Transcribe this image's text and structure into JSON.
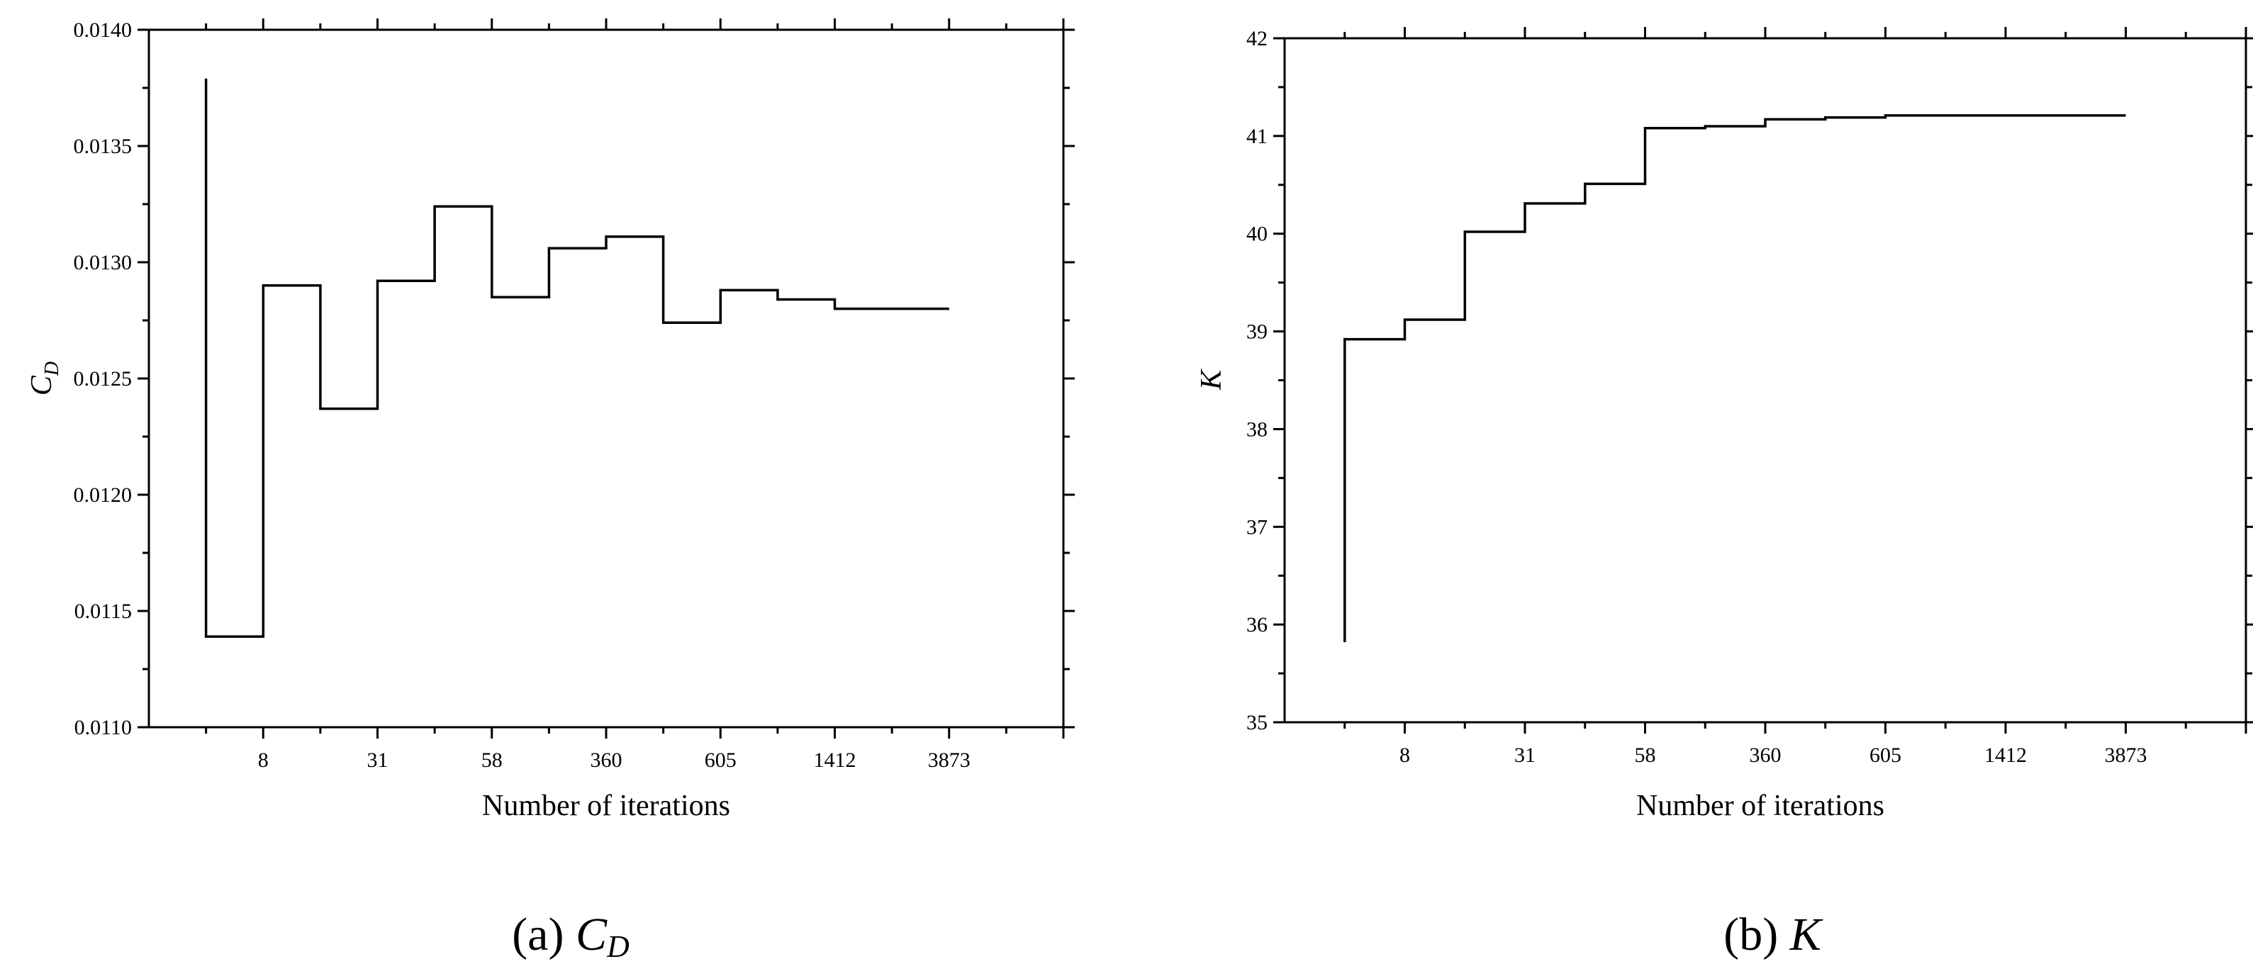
{
  "chart_data": [
    {
      "type": "line",
      "subtype": "step",
      "caption": {
        "prefix": "(a) ",
        "symbol": "C",
        "subscript": "D"
      },
      "ylabel": {
        "symbol": "C",
        "subscript": "D"
      },
      "xlabel": "Number of iterations",
      "ylim": [
        0.011,
        0.014
      ],
      "y_ticks": [
        "0.0110",
        "0.0115",
        "0.0120",
        "0.0125",
        "0.0130",
        "0.0135",
        "0.0140"
      ],
      "x_tick_labels": [
        "8",
        "31",
        "58",
        "360",
        "605",
        "1412",
        "3873"
      ],
      "x_index_range": [
        0,
        16
      ],
      "series": [
        {
          "points": [
            [
              1,
              0.01379
            ],
            [
              1,
              0.01139
            ],
            [
              2,
              0.01139
            ],
            [
              2,
              0.0129
            ],
            [
              3,
              0.0129
            ],
            [
              3,
              0.01237
            ],
            [
              4,
              0.01237
            ],
            [
              4,
              0.01292
            ],
            [
              5,
              0.01292
            ],
            [
              5,
              0.01324
            ],
            [
              6,
              0.01324
            ],
            [
              6,
              0.01285
            ],
            [
              7,
              0.01285
            ],
            [
              7,
              0.01306
            ],
            [
              8,
              0.01306
            ],
            [
              8,
              0.01311
            ],
            [
              9,
              0.01311
            ],
            [
              9,
              0.01274
            ],
            [
              10,
              0.01274
            ],
            [
              10,
              0.01288
            ],
            [
              11,
              0.01288
            ],
            [
              11,
              0.01284
            ],
            [
              12,
              0.01284
            ],
            [
              12,
              0.0128
            ],
            [
              14,
              0.0128
            ]
          ]
        }
      ],
      "grid": false
    },
    {
      "type": "line",
      "subtype": "step",
      "caption": {
        "prefix": "(b) ",
        "symbol": "K",
        "subscript": ""
      },
      "ylabel": {
        "symbol": "K",
        "subscript": ""
      },
      "xlabel": "Number of iterations",
      "ylim": [
        35,
        42
      ],
      "y_ticks": [
        "35",
        "36",
        "37",
        "38",
        "39",
        "40",
        "41",
        "42"
      ],
      "x_tick_labels": [
        "8",
        "31",
        "58",
        "360",
        "605",
        "1412",
        "3873"
      ],
      "x_index_range": [
        0,
        16
      ],
      "series": [
        {
          "points": [
            [
              1,
              35.82
            ],
            [
              1,
              38.92
            ],
            [
              2,
              38.92
            ],
            [
              2,
              39.12
            ],
            [
              3,
              39.12
            ],
            [
              3,
              40.02
            ],
            [
              4,
              40.02
            ],
            [
              4,
              40.31
            ],
            [
              5,
              40.31
            ],
            [
              5,
              40.51
            ],
            [
              6,
              40.51
            ],
            [
              6,
              41.08
            ],
            [
              7,
              41.08
            ],
            [
              7,
              41.1
            ],
            [
              8,
              41.1
            ],
            [
              8,
              41.17
            ],
            [
              9,
              41.17
            ],
            [
              9,
              41.19
            ],
            [
              10,
              41.19
            ],
            [
              10,
              41.21
            ],
            [
              14,
              41.21
            ]
          ]
        }
      ],
      "grid": false
    }
  ]
}
